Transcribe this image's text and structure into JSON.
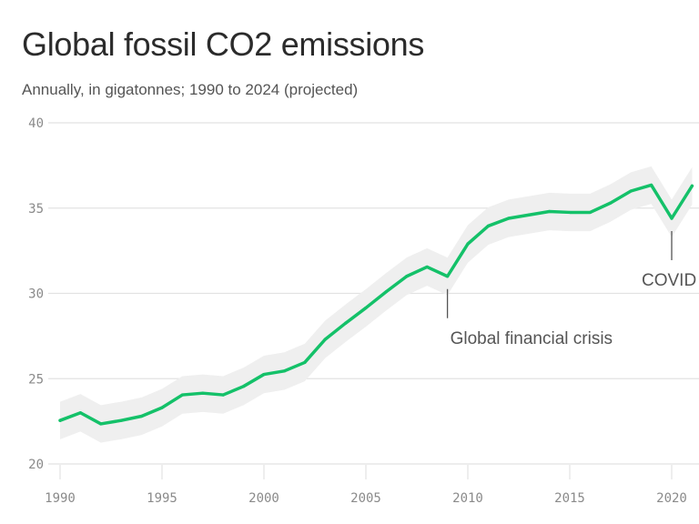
{
  "title": "Global fossil CO2 emissions",
  "subtitle": "Annually, in gigatonnes; 1990 to 2024 (projected)",
  "colors": {
    "line": "#14c169",
    "band": "#efefef",
    "grid": "#e2e2e2",
    "tick": "#8a8a8a"
  },
  "chart_data": {
    "type": "line",
    "title": "Global fossil CO2 emissions",
    "subtitle": "Annually, in gigatonnes; 1990 to 2024 (projected)",
    "xlabel": "",
    "ylabel": "",
    "ylim": [
      20,
      40
    ],
    "xlim": [
      1990,
      2021
    ],
    "yticks": [
      20,
      25,
      30,
      35,
      40
    ],
    "xticks": [
      1990,
      1995,
      2000,
      2005,
      2010,
      2015,
      2020
    ],
    "grid": true,
    "x": [
      1990,
      1991,
      1992,
      1993,
      1994,
      1995,
      1996,
      1997,
      1998,
      1999,
      2000,
      2001,
      2002,
      2003,
      2004,
      2005,
      2006,
      2007,
      2008,
      2009,
      2010,
      2011,
      2012,
      2013,
      2014,
      2015,
      2016,
      2017,
      2018,
      2019,
      2020,
      2021
    ],
    "series": [
      {
        "name": "Emissions",
        "values": [
          22.55,
          23.0,
          22.35,
          22.55,
          22.8,
          23.3,
          24.05,
          24.15,
          24.05,
          24.55,
          25.25,
          25.45,
          25.95,
          27.3,
          28.25,
          29.15,
          30.1,
          31.0,
          31.55,
          31.0,
          32.9,
          33.95,
          34.4,
          34.6,
          34.8,
          34.75,
          34.75,
          35.3,
          36.0,
          36.35,
          34.4,
          36.3
        ]
      }
    ],
    "uncertainty_band": {
      "lower_offset": -1.1,
      "upper_offset": 1.1
    },
    "annotations": [
      {
        "x": 2009,
        "label": "Global financial crisis"
      },
      {
        "x": 2020,
        "label": "COVID"
      }
    ]
  }
}
